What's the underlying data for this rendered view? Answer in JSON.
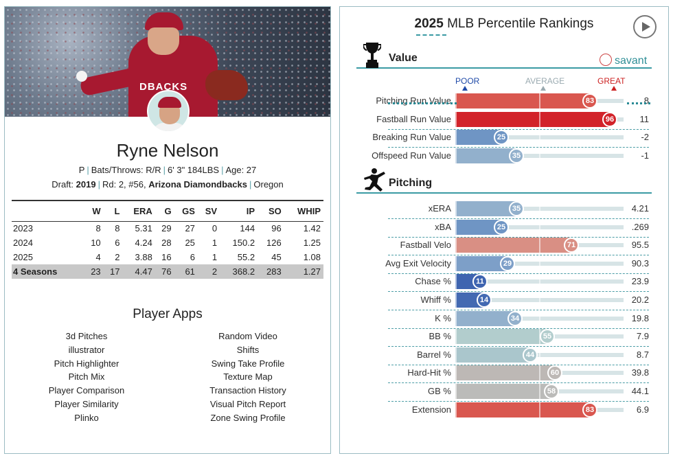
{
  "player": {
    "name": "Ryne Nelson",
    "position": "P",
    "bats_throws": "Bats/Throws: R/R",
    "height_weight": "6' 3\" 184LBS",
    "age": "Age: 27",
    "draft_label": "Draft:",
    "draft_year": "2019",
    "draft_pick": "Rd: 2, #56,",
    "draft_team": "Arizona Diamondbacks",
    "school": "Oregon",
    "jersey_text": "DBACKS"
  },
  "stats": {
    "headers": [
      "",
      "W",
      "L",
      "ERA",
      "G",
      "GS",
      "SV",
      "IP",
      "SO",
      "WHIP"
    ],
    "rows": [
      [
        "2023",
        "8",
        "8",
        "5.31",
        "29",
        "27",
        "0",
        "144",
        "96",
        "1.42"
      ],
      [
        "2024",
        "10",
        "6",
        "4.24",
        "28",
        "25",
        "1",
        "150.2",
        "126",
        "1.25"
      ],
      [
        "2025",
        "4",
        "2",
        "3.88",
        "16",
        "6",
        "1",
        "55.2",
        "45",
        "1.08"
      ]
    ],
    "total": [
      "4 Seasons",
      "23",
      "17",
      "4.47",
      "76",
      "61",
      "2",
      "368.2",
      "283",
      "1.27"
    ]
  },
  "apps": {
    "title": "Player Apps",
    "left": [
      "3d Pitches",
      "illustrator",
      "Pitch Highlighter",
      "Pitch Mix",
      "Player Comparison",
      "Player Similarity",
      "Plinko"
    ],
    "right": [
      "Random Video",
      "Shifts",
      "Swing Take Profile",
      "Texture Map",
      "Transaction History",
      "Visual Pitch Report",
      "Zone Swing Profile"
    ]
  },
  "rankings": {
    "year": "2025",
    "title": "MLB Percentile Rankings",
    "savant_label": "savant",
    "scale": {
      "poor": "POOR",
      "average": "AVERAGE",
      "great": "GREAT"
    },
    "value_section": {
      "label": "Value",
      "metrics": [
        {
          "name": "Pitching Run Value",
          "percentile": 83,
          "value": "8",
          "color": "#d9574f"
        },
        {
          "name": "Fastball Run Value",
          "percentile": 96,
          "value": "11",
          "color": "#d2232a"
        },
        {
          "name": "Breaking Run Value",
          "percentile": 25,
          "value": "-2",
          "color": "#6f95c4"
        },
        {
          "name": "Offspeed Run Value",
          "percentile": 35,
          "value": "-1",
          "color": "#92b0cc"
        }
      ]
    },
    "pitching_section": {
      "label": "Pitching",
      "metrics": [
        {
          "name": "xERA",
          "percentile": 35,
          "value": "4.21",
          "color": "#92b0cc"
        },
        {
          "name": "xBA",
          "percentile": 25,
          "value": ".269",
          "color": "#6f95c4"
        },
        {
          "name": "Fastball Velo",
          "percentile": 71,
          "value": "95.5",
          "color": "#d98f84"
        },
        {
          "name": "Avg Exit Velocity",
          "percentile": 29,
          "value": "90.3",
          "color": "#7d9fc8"
        },
        {
          "name": "Chase %",
          "percentile": 11,
          "value": "23.9",
          "color": "#3e64b0"
        },
        {
          "name": "Whiff %",
          "percentile": 14,
          "value": "20.2",
          "color": "#4369b2"
        },
        {
          "name": "K %",
          "percentile": 34,
          "value": "19.8",
          "color": "#92b0cc"
        },
        {
          "name": "BB %",
          "percentile": 55,
          "value": "7.9",
          "color": "#b2cdcd"
        },
        {
          "name": "Barrel %",
          "percentile": 44,
          "value": "8.7",
          "color": "#aac6cc"
        },
        {
          "name": "Hard-Hit %",
          "percentile": 60,
          "value": "39.8",
          "color": "#bdb8b5"
        },
        {
          "name": "GB %",
          "percentile": 58,
          "value": "44.1",
          "color": "#bbbbb9"
        },
        {
          "name": "Extension",
          "percentile": 83,
          "value": "6.9",
          "color": "#d9574f"
        }
      ]
    }
  }
}
